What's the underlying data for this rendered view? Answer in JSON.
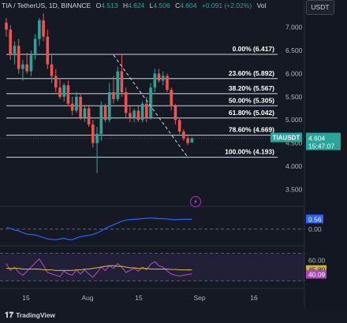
{
  "header": {
    "title": "TIA / TetherUS, 1D, BINANCE",
    "open_label": "O",
    "open": "4.513",
    "high_label": "H",
    "high": "4.624",
    "low_label": "L",
    "low": "4.506",
    "close_label": "C",
    "close": "4.604",
    "change": "+0.091 (+2.02%)",
    "vol_label": "Vol"
  },
  "currency_button": "USDT",
  "brand": "TradingView",
  "colors": {
    "background": "#151924",
    "up": "#26a69a",
    "down": "#ef5350",
    "fib": "#d1d4dc",
    "macd": "#2962ff",
    "rsi": "#ab47bc",
    "rsi_ma": "#c8b82a"
  },
  "chart_data": [
    {
      "type": "candlestick",
      "symbol": "TIAUSDT",
      "interval": "1D",
      "ylim": [
        3.2,
        7.25
      ],
      "yticks": [
        "7.000",
        "6.500",
        "6.000",
        "5.500",
        "5.000",
        "4.500",
        "4.000",
        "3.500"
      ],
      "x_ticks": [
        "15",
        "Aug",
        "15",
        "Sep",
        "16"
      ],
      "last_price": "4.604",
      "countdown": "15:47:07",
      "fibonacci": [
        {
          "label": "0.00% (6.417)",
          "value": 6.417
        },
        {
          "label": "23.60% (5.892)",
          "value": 5.892
        },
        {
          "label": "38.20% (5.567)",
          "value": 5.567
        },
        {
          "label": "50.00% (5.305)",
          "value": 5.305
        },
        {
          "label": "61.80% (5.042)",
          "value": 5.042
        },
        {
          "label": "78.60% (4.669)",
          "value": 4.669
        },
        {
          "label": "100.00% (4.193)",
          "value": 4.193
        }
      ],
      "candles": [
        {
          "o": 7.1,
          "h": 7.2,
          "l": 6.8,
          "c": 6.95
        },
        {
          "o": 6.95,
          "h": 7.05,
          "l": 6.3,
          "c": 6.4
        },
        {
          "o": 6.4,
          "h": 6.7,
          "l": 6.2,
          "c": 6.6
        },
        {
          "o": 6.6,
          "h": 6.75,
          "l": 6.0,
          "c": 6.1
        },
        {
          "o": 6.1,
          "h": 6.3,
          "l": 5.85,
          "c": 6.2
        },
        {
          "o": 6.2,
          "h": 6.45,
          "l": 6.0,
          "c": 6.05
        },
        {
          "o": 6.05,
          "h": 6.5,
          "l": 5.95,
          "c": 6.4
        },
        {
          "o": 6.4,
          "h": 6.85,
          "l": 6.3,
          "c": 6.75
        },
        {
          "o": 6.75,
          "h": 7.2,
          "l": 6.6,
          "c": 7.15
        },
        {
          "o": 7.15,
          "h": 7.3,
          "l": 6.7,
          "c": 6.8
        },
        {
          "o": 6.8,
          "h": 6.95,
          "l": 6.1,
          "c": 6.2
        },
        {
          "o": 6.2,
          "h": 6.4,
          "l": 5.8,
          "c": 5.95
        },
        {
          "o": 5.95,
          "h": 6.1,
          "l": 5.6,
          "c": 5.7
        },
        {
          "o": 5.7,
          "h": 5.9,
          "l": 5.45,
          "c": 5.5
        },
        {
          "o": 5.5,
          "h": 5.8,
          "l": 5.4,
          "c": 5.75
        },
        {
          "o": 5.75,
          "h": 5.85,
          "l": 5.3,
          "c": 5.35
        },
        {
          "o": 5.35,
          "h": 5.5,
          "l": 5.1,
          "c": 5.2
        },
        {
          "o": 5.2,
          "h": 5.6,
          "l": 5.15,
          "c": 5.5
        },
        {
          "o": 5.5,
          "h": 5.55,
          "l": 5.0,
          "c": 5.05
        },
        {
          "o": 5.05,
          "h": 5.3,
          "l": 4.95,
          "c": 5.25
        },
        {
          "o": 5.25,
          "h": 5.3,
          "l": 4.85,
          "c": 4.9
        },
        {
          "o": 4.9,
          "h": 5.0,
          "l": 4.4,
          "c": 4.5
        },
        {
          "o": 4.5,
          "h": 4.85,
          "l": 3.85,
          "c": 4.7
        },
        {
          "o": 4.7,
          "h": 5.4,
          "l": 4.55,
          "c": 5.3
        },
        {
          "o": 5.3,
          "h": 5.35,
          "l": 4.95,
          "c": 5.0
        },
        {
          "o": 5.0,
          "h": 5.8,
          "l": 4.95,
          "c": 5.6
        },
        {
          "o": 5.6,
          "h": 5.95,
          "l": 5.35,
          "c": 5.45
        },
        {
          "o": 5.45,
          "h": 6.15,
          "l": 5.4,
          "c": 6.05
        },
        {
          "o": 6.05,
          "h": 6.4,
          "l": 5.5,
          "c": 5.6
        },
        {
          "o": 5.6,
          "h": 5.7,
          "l": 5.05,
          "c": 5.15
        },
        {
          "o": 5.15,
          "h": 5.3,
          "l": 4.95,
          "c": 5.05
        },
        {
          "o": 5.05,
          "h": 5.25,
          "l": 4.95,
          "c": 5.2
        },
        {
          "o": 5.2,
          "h": 5.3,
          "l": 4.95,
          "c": 5.0
        },
        {
          "o": 5.0,
          "h": 5.4,
          "l": 4.95,
          "c": 5.35
        },
        {
          "o": 5.35,
          "h": 5.5,
          "l": 4.95,
          "c": 5.05
        },
        {
          "o": 5.05,
          "h": 5.8,
          "l": 5.0,
          "c": 5.7
        },
        {
          "o": 5.7,
          "h": 6.1,
          "l": 5.6,
          "c": 6.0
        },
        {
          "o": 6.0,
          "h": 6.1,
          "l": 5.8,
          "c": 5.85
        },
        {
          "o": 5.85,
          "h": 6.05,
          "l": 5.75,
          "c": 5.95
        },
        {
          "o": 5.95,
          "h": 6.0,
          "l": 5.6,
          "c": 5.65
        },
        {
          "o": 5.65,
          "h": 5.7,
          "l": 5.2,
          "c": 5.3
        },
        {
          "o": 5.3,
          "h": 5.35,
          "l": 4.9,
          "c": 5.0
        },
        {
          "o": 5.0,
          "h": 5.05,
          "l": 4.7,
          "c": 4.75
        },
        {
          "o": 4.75,
          "h": 4.8,
          "l": 4.55,
          "c": 4.6
        },
        {
          "o": 4.6,
          "h": 4.65,
          "l": 4.45,
          "c": 4.5
        },
        {
          "o": 4.513,
          "h": 4.624,
          "l": 4.506,
          "c": 4.604
        }
      ],
      "trend_line": {
        "from": {
          "index": 26,
          "value": 6.4
        },
        "to": {
          "index": 44,
          "value": 4.193
        }
      }
    },
    {
      "type": "line",
      "name": "MACD",
      "ylim": [
        -0.9,
        1.25
      ],
      "levels": [
        {
          "label": "0.56",
          "value": 0.56
        },
        {
          "label": "0.00",
          "value": 0.0
        }
      ],
      "series": [
        {
          "values": [
            0.1,
            0.05,
            -0.05,
            -0.1,
            -0.2,
            -0.28,
            -0.3,
            -0.33,
            -0.4,
            -0.48,
            -0.55,
            -0.58,
            -0.6,
            -0.56,
            -0.52,
            -0.58,
            -0.6,
            -0.5,
            -0.42,
            -0.38,
            -0.35,
            -0.3,
            -0.22,
            -0.1,
            0.05,
            0.15,
            0.25,
            0.35,
            0.45,
            0.52,
            0.55,
            0.56,
            0.58,
            0.6,
            0.62,
            0.63,
            0.62,
            0.6,
            0.6,
            0.58,
            0.55,
            0.54,
            0.55,
            0.56,
            0.56,
            0.56
          ]
        }
      ]
    },
    {
      "type": "line",
      "name": "RSI",
      "ylim": [
        20,
        80
      ],
      "levels": [
        {
          "label": "60.00",
          "value": 60
        },
        {
          "label": "45.80",
          "value": 45.8
        },
        {
          "label": "40.09",
          "value": 40.09
        }
      ],
      "series": [
        {
          "values": [
            55,
            45,
            50,
            42,
            38,
            44,
            50,
            56,
            62,
            52,
            42,
            40,
            38,
            36,
            44,
            40,
            38,
            46,
            40,
            46,
            40,
            35,
            42,
            50,
            45,
            52,
            48,
            55,
            50,
            42,
            45,
            48,
            44,
            50,
            46,
            54,
            58,
            52,
            50,
            44,
            40,
            38,
            37,
            38,
            39,
            40.09
          ]
        },
        {
          "values": [
            48,
            48,
            48,
            48,
            47,
            47,
            47,
            47,
            47,
            46,
            46,
            46,
            45,
            45,
            45,
            45,
            45,
            46,
            46,
            47,
            47,
            48,
            49,
            50,
            51,
            52,
            52,
            51,
            51,
            50,
            49,
            49,
            48,
            48,
            48,
            47,
            47,
            47,
            47,
            47,
            46.5,
            46.5,
            46,
            46,
            45.9,
            45.8
          ]
        }
      ]
    }
  ]
}
